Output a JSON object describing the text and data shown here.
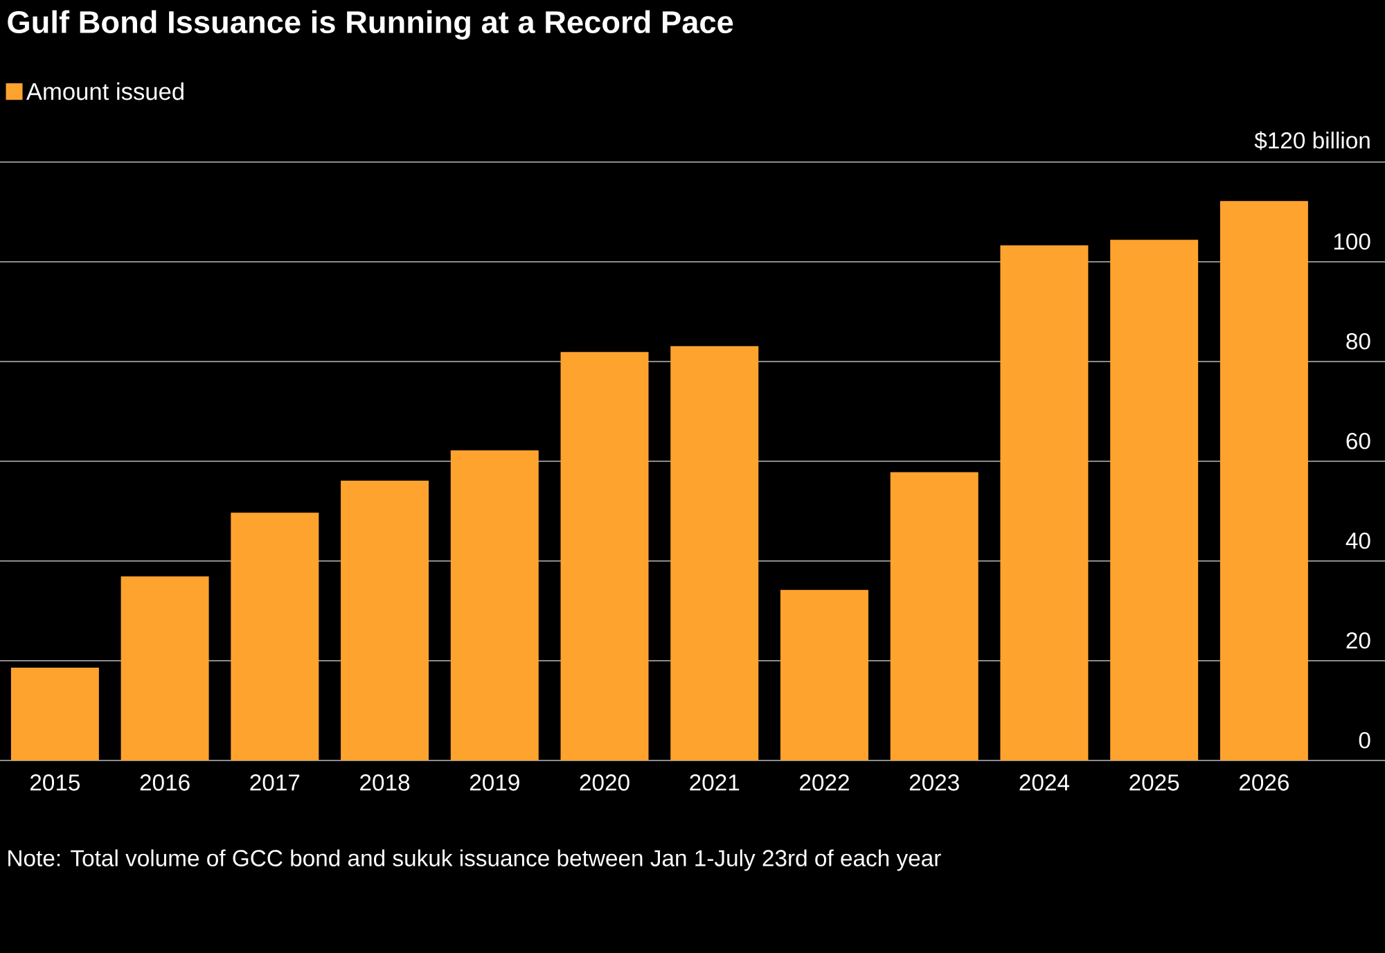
{
  "chart_data": {
    "type": "bar",
    "title": "Gulf Bond Issuance is Running at a Record Pace",
    "categories": [
      "2015",
      "2016",
      "2017",
      "2018",
      "2019",
      "2020",
      "2021",
      "2022",
      "2023",
      "2024",
      "2025",
      "2026"
    ],
    "series": [
      {
        "name": "Amount issued",
        "color": "#ffa32f",
        "values": [
          18.6,
          36.9,
          49.7,
          56.1,
          62.2,
          81.9,
          83.1,
          34.2,
          57.8,
          103.3,
          104.4,
          112.2
        ]
      }
    ],
    "ylim": [
      0,
      120
    ],
    "yticks": [
      0,
      20,
      40,
      60,
      80,
      100,
      {
        "value": 120,
        "label": "$120 billion"
      }
    ],
    "grid": "y",
    "legend": "top left",
    "annotations": [
      "Note: Total volume of GCC bond and sukuk issuance between Jan 1-July 23rd of each year"
    ]
  }
}
